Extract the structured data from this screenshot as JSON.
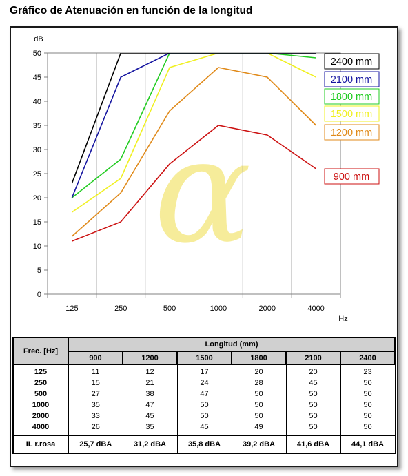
{
  "page": {
    "title": "Gráfico de Atenuación en función de la longitud"
  },
  "colors": {
    "2400 mm": "#000000",
    "2100 mm": "#1515a0",
    "1800 mm": "#22cc22",
    "1500 mm": "#f0f020",
    "1200 mm": "#e08a1a",
    "900 mm": "#cc1111",
    "watermark": "#f6ec9a",
    "grid": "#808080",
    "table_header_bg": "#d0d0d0"
  },
  "watermark_symbol": "α",
  "chart_data": {
    "type": "line",
    "x": [
      "125",
      "250",
      "500",
      "1000",
      "2000",
      "4000"
    ],
    "x_unit": "Hz",
    "y_unit": "dB",
    "ylim": [
      0,
      50
    ],
    "yticks": [
      0,
      5,
      10,
      15,
      20,
      25,
      30,
      35,
      40,
      45,
      50
    ],
    "grid": true,
    "legend": "right",
    "series": [
      {
        "name": "2400 mm",
        "values": [
          23,
          50,
          50,
          50,
          50,
          50
        ]
      },
      {
        "name": "2100 mm",
        "values": [
          20,
          45,
          50,
          50,
          50,
          50
        ]
      },
      {
        "name": "1800 mm",
        "values": [
          20,
          28,
          50,
          50,
          50,
          49
        ]
      },
      {
        "name": "1500 mm",
        "values": [
          17,
          24,
          47,
          50,
          50,
          45
        ]
      },
      {
        "name": "1200 mm",
        "values": [
          12,
          21,
          38,
          47,
          45,
          35
        ]
      },
      {
        "name": "900 mm",
        "values": [
          11,
          15,
          27,
          35,
          33,
          26
        ]
      }
    ]
  },
  "table": {
    "frec_header": "Frec. [Hz]",
    "longitud_header": "Longitud (mm)",
    "columns": [
      "900",
      "1200",
      "1500",
      "1800",
      "2100",
      "2400"
    ],
    "rows": [
      {
        "freq": "125",
        "values": [
          "11",
          "12",
          "17",
          "20",
          "20",
          "23"
        ]
      },
      {
        "freq": "250",
        "values": [
          "15",
          "21",
          "24",
          "28",
          "45",
          "50"
        ]
      },
      {
        "freq": "500",
        "values": [
          "27",
          "38",
          "47",
          "50",
          "50",
          "50"
        ]
      },
      {
        "freq": "1000",
        "values": [
          "35",
          "47",
          "50",
          "50",
          "50",
          "50"
        ]
      },
      {
        "freq": "2000",
        "values": [
          "33",
          "45",
          "50",
          "50",
          "50",
          "50"
        ]
      },
      {
        "freq": "4000",
        "values": [
          "26",
          "35",
          "45",
          "49",
          "50",
          "50"
        ]
      }
    ],
    "il_label": "IL r.rosa",
    "il_values": [
      "25,7 dBA",
      "31,2 dBA",
      "35,8 dBA",
      "39,2 dBA",
      "41,6 dBA",
      "44,1 dBA"
    ]
  }
}
